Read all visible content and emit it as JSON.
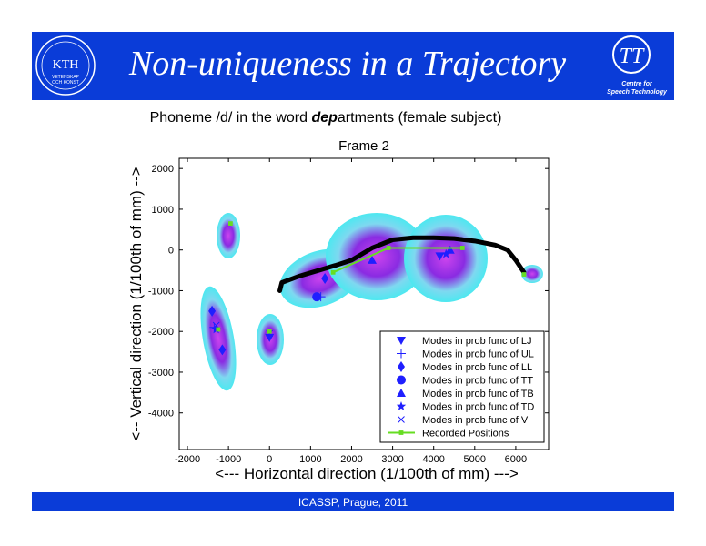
{
  "header": {
    "title": "Non-uniqueness in a Trajectory",
    "left_logo": {
      "text": "KTH",
      "motto": [
        "VETENSKAP",
        "OCH KONST"
      ]
    },
    "right_logo": {
      "text": "TT",
      "caption": [
        "Centre for",
        "Speech Technology"
      ]
    }
  },
  "subtitle": {
    "parts": [
      "Phoneme /d/ in the word ",
      "dep",
      "artments (female subject)"
    ]
  },
  "chart_data": {
    "type": "scatter",
    "title": "Frame 2",
    "x_label": "<--- Horizontal direction (1/100th of mm) --->",
    "y_label": "<-- Vertical direction (1/100th of mm) -->",
    "xlim": [
      -2200,
      6800
    ],
    "ylim": [
      -4900,
      2250
    ],
    "xticks": [
      -2000,
      -1000,
      0,
      1000,
      2000,
      3000,
      4000,
      5000,
      6000
    ],
    "yticks": [
      -4000,
      -3000,
      -2000,
      -1000,
      0,
      1000,
      2000
    ],
    "legend": "lower right",
    "trajectory": {
      "color": "#000000",
      "x": [
        250,
        300,
        700,
        1200,
        1600,
        2000,
        2500,
        3000,
        3500,
        4000,
        4500,
        5000,
        5500,
        5800,
        6000,
        6200
      ],
      "y": [
        -1000,
        -800,
        -650,
        -500,
        -380,
        -250,
        50,
        250,
        300,
        300,
        280,
        220,
        120,
        0,
        -250,
        -550
      ]
    },
    "series": [
      {
        "name": "Modes in prob func of LJ",
        "marker": "triangle-down",
        "color": "#1f1fff",
        "x": [
          0,
          4150
        ],
        "y": [
          -2150,
          -150
        ]
      },
      {
        "name": "Modes in prob func of UL",
        "marker": "plus",
        "color": "#1f1fff",
        "x": [
          -1350,
          1250
        ],
        "y": [
          -1900,
          -1150
        ]
      },
      {
        "name": "Modes in prob func of LL",
        "marker": "diamond",
        "color": "#1f1fff",
        "x": [
          -1400,
          -1150,
          1350
        ],
        "y": [
          -1500,
          -2450,
          -700
        ]
      },
      {
        "name": "Modes in prob func of TT",
        "marker": "circle",
        "color": "#1f1fff",
        "x": [
          1150
        ],
        "y": [
          -1150
        ]
      },
      {
        "name": "Modes in prob func of TB",
        "marker": "triangle-up",
        "color": "#1f1fff",
        "x": [
          2500,
          4400
        ],
        "y": [
          -250,
          0
        ]
      },
      {
        "name": "Modes in prob func of TD",
        "marker": "star",
        "color": "#1f1fff",
        "x": [
          -1300,
          4300
        ],
        "y": [
          -1950,
          -100
        ]
      },
      {
        "name": "Modes in prob func of V",
        "marker": "x",
        "color": "#1f1fff",
        "x": [
          -1300,
          0
        ],
        "y": [
          -1850,
          -2050
        ]
      },
      {
        "name": "Recorded Positions",
        "marker": "square",
        "line": true,
        "color": "#66dd22",
        "x": [
          -950,
          null,
          -1250,
          null,
          0,
          null,
          1550,
          2900,
          4700,
          null,
          6200
        ],
        "y": [
          650,
          null,
          -1950,
          null,
          -2000,
          null,
          -550,
          50,
          50,
          null,
          -600
        ]
      }
    ]
  },
  "footer": {
    "text": "ICASSP, Prague,  2011"
  }
}
